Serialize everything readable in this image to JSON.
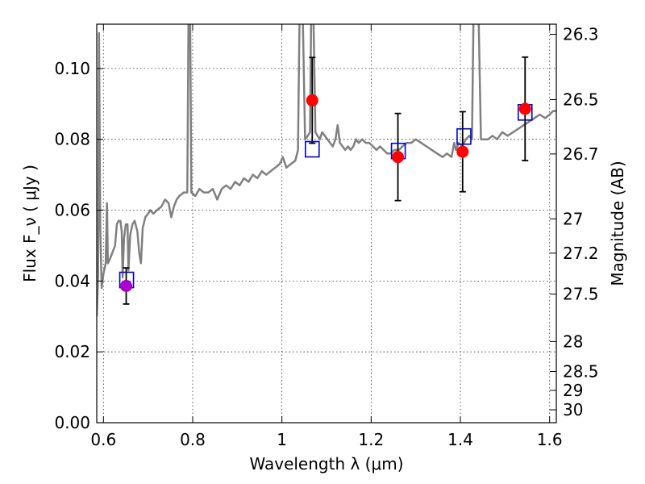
{
  "chart_data": {
    "type": "scatter",
    "title": "",
    "xlabel": "Wavelength  λ (μm)",
    "ylabel": "Flux  F_ν  ( μJy )",
    "ylabel_right": "Magnitude (AB)",
    "xlim": [
      0.585,
      1.615
    ],
    "ylim": [
      0.0,
      0.1125
    ],
    "xticks": [
      0.6,
      0.8,
      1.0,
      1.2,
      1.4,
      1.6
    ],
    "xtick_labels": [
      "0.6",
      "0.8",
      "1",
      "1.2",
      "1.4",
      "1.6"
    ],
    "yticks": [
      0.0,
      0.02,
      0.04,
      0.06,
      0.08,
      0.1
    ],
    "ytick_labels": [
      "0.00",
      "0.02",
      "0.04",
      "0.06",
      "0.08",
      "0.10"
    ],
    "right_ticks": [
      {
        "label": "26.3",
        "value": 26.3
      },
      {
        "label": "26.5",
        "value": 26.5
      },
      {
        "label": "26.7",
        "value": 26.7
      },
      {
        "label": "27",
        "value": 27.0
      },
      {
        "label": "27.2",
        "value": 27.2
      },
      {
        "label": "27.5",
        "value": 27.5
      },
      {
        "label": "28",
        "value": 28.0
      },
      {
        "label": "28.5",
        "value": 28.5
      },
      {
        "label": "29",
        "value": 29.0
      },
      {
        "label": "30",
        "value": 30.0
      }
    ],
    "grid": true,
    "colors": {
      "spectrum": "#808080",
      "observed": "#ff0000",
      "observed_optical": "#aa00cc",
      "model_box": "#0000cc",
      "errorbar": "#000000"
    },
    "series": [
      {
        "type": "line",
        "points": [
          [
            0.585,
            0.03
          ],
          [
            0.588,
            0.041
          ],
          [
            0.59,
            0.11
          ],
          [
            0.593,
            0.055
          ],
          [
            0.596,
            0.038
          ],
          [
            0.6,
            0.042
          ],
          [
            0.605,
            0.045
          ],
          [
            0.608,
            0.062
          ],
          [
            0.61,
            0.045
          ],
          [
            0.614,
            0.046
          ],
          [
            0.62,
            0.048
          ],
          [
            0.626,
            0.05
          ],
          [
            0.63,
            0.056
          ],
          [
            0.634,
            0.057
          ],
          [
            0.638,
            0.057
          ],
          [
            0.641,
            0.054
          ],
          [
            0.643,
            0.041
          ],
          [
            0.646,
            0.052
          ],
          [
            0.65,
            0.056
          ],
          [
            0.654,
            0.056
          ],
          [
            0.656,
            0.043
          ],
          [
            0.66,
            0.053
          ],
          [
            0.665,
            0.056
          ],
          [
            0.67,
            0.057
          ],
          [
            0.676,
            0.054
          ],
          [
            0.68,
            0.048
          ],
          [
            0.684,
            0.045
          ],
          [
            0.688,
            0.055
          ],
          [
            0.694,
            0.058
          ],
          [
            0.7,
            0.059
          ],
          [
            0.705,
            0.06
          ],
          [
            0.712,
            0.059
          ],
          [
            0.72,
            0.06
          ],
          [
            0.73,
            0.061
          ],
          [
            0.738,
            0.063
          ],
          [
            0.746,
            0.062
          ],
          [
            0.752,
            0.058
          ],
          [
            0.758,
            0.061
          ],
          [
            0.764,
            0.063
          ],
          [
            0.77,
            0.064
          ],
          [
            0.78,
            0.065
          ],
          [
            0.788,
            0.065
          ],
          [
            0.791,
            0.12
          ],
          [
            0.794,
            0.12
          ],
          [
            0.797,
            0.065
          ],
          [
            0.806,
            0.064
          ],
          [
            0.815,
            0.066
          ],
          [
            0.825,
            0.065
          ],
          [
            0.835,
            0.065
          ],
          [
            0.845,
            0.066
          ],
          [
            0.855,
            0.063
          ],
          [
            0.865,
            0.066
          ],
          [
            0.875,
            0.067
          ],
          [
            0.885,
            0.066
          ],
          [
            0.895,
            0.068
          ],
          [
            0.905,
            0.067
          ],
          [
            0.915,
            0.069
          ],
          [
            0.925,
            0.068
          ],
          [
            0.935,
            0.07
          ],
          [
            0.945,
            0.069
          ],
          [
            0.955,
            0.071
          ],
          [
            0.965,
            0.07
          ],
          [
            0.975,
            0.071
          ],
          [
            0.985,
            0.072
          ],
          [
            0.995,
            0.073
          ],
          [
            1.002,
            0.075
          ],
          [
            1.01,
            0.072
          ],
          [
            1.02,
            0.073
          ],
          [
            1.03,
            0.074
          ],
          [
            1.036,
            0.077
          ],
          [
            1.04,
            0.12
          ],
          [
            1.046,
            0.12
          ],
          [
            1.052,
            0.08
          ],
          [
            1.058,
            0.081
          ],
          [
            1.063,
            0.082
          ],
          [
            1.066,
            0.12
          ],
          [
            1.07,
            0.12
          ],
          [
            1.075,
            0.082
          ],
          [
            1.08,
            0.081
          ],
          [
            1.085,
            0.08
          ],
          [
            1.09,
            0.082
          ],
          [
            1.096,
            0.081
          ],
          [
            1.102,
            0.08
          ],
          [
            1.108,
            0.079
          ],
          [
            1.114,
            0.078
          ],
          [
            1.12,
            0.08
          ],
          [
            1.125,
            0.084
          ],
          [
            1.13,
            0.079
          ],
          [
            1.136,
            0.078
          ],
          [
            1.142,
            0.077
          ],
          [
            1.148,
            0.078
          ],
          [
            1.154,
            0.077
          ],
          [
            1.16,
            0.078
          ],
          [
            1.166,
            0.08
          ],
          [
            1.172,
            0.079
          ],
          [
            1.18,
            0.08
          ],
          [
            1.188,
            0.079
          ],
          [
            1.196,
            0.079
          ],
          [
            1.204,
            0.078
          ],
          [
            1.212,
            0.077
          ],
          [
            1.22,
            0.078
          ],
          [
            1.228,
            0.077
          ],
          [
            1.236,
            0.076
          ],
          [
            1.244,
            0.076
          ],
          [
            1.252,
            0.077
          ],
          [
            1.262,
            0.077
          ],
          [
            1.27,
            0.078
          ],
          [
            1.28,
            0.079
          ],
          [
            1.29,
            0.079
          ],
          [
            1.3,
            0.08
          ],
          [
            1.312,
            0.079
          ],
          [
            1.324,
            0.078
          ],
          [
            1.336,
            0.077
          ],
          [
            1.348,
            0.076
          ],
          [
            1.36,
            0.075
          ],
          [
            1.37,
            0.076
          ],
          [
            1.38,
            0.075
          ],
          [
            1.386,
            0.079
          ],
          [
            1.39,
            0.077
          ],
          [
            1.396,
            0.079
          ],
          [
            1.404,
            0.078
          ],
          [
            1.412,
            0.08
          ],
          [
            1.42,
            0.081
          ],
          [
            1.426,
            0.08
          ],
          [
            1.43,
            0.12
          ],
          [
            1.44,
            0.12
          ],
          [
            1.446,
            0.08
          ],
          [
            1.452,
            0.08
          ],
          [
            1.462,
            0.08
          ],
          [
            1.472,
            0.081
          ],
          [
            1.482,
            0.08
          ],
          [
            1.494,
            0.082
          ],
          [
            1.506,
            0.081
          ],
          [
            1.518,
            0.082
          ],
          [
            1.53,
            0.083
          ],
          [
            1.542,
            0.084
          ],
          [
            1.554,
            0.085
          ],
          [
            1.566,
            0.086
          ],
          [
            1.578,
            0.087
          ],
          [
            1.59,
            0.086
          ],
          [
            1.6,
            0.087
          ],
          [
            1.608,
            0.088
          ],
          [
            1.615,
            0.088
          ]
        ]
      },
      {
        "type": "model_boxes",
        "points": [
          {
            "x": 0.652,
            "y": 0.0403
          },
          {
            "x": 1.068,
            "y": 0.0772
          },
          {
            "x": 1.261,
            "y": 0.0767
          },
          {
            "x": 1.408,
            "y": 0.0808
          },
          {
            "x": 1.545,
            "y": 0.0876
          }
        ]
      },
      {
        "type": "observed",
        "points": [
          {
            "x": 0.651,
            "y": 0.0386,
            "err": 0.0051,
            "color": "#aa00cc"
          },
          {
            "x": 1.068,
            "y": 0.091,
            "err": 0.0121,
            "color": "#ff0000"
          },
          {
            "x": 1.26,
            "y": 0.075,
            "err": 0.0123,
            "color": "#ff0000"
          },
          {
            "x": 1.405,
            "y": 0.0765,
            "err": 0.0113,
            "color": "#ff0000"
          },
          {
            "x": 1.545,
            "y": 0.0886,
            "err": 0.0146,
            "color": "#ff0000"
          }
        ]
      }
    ]
  }
}
